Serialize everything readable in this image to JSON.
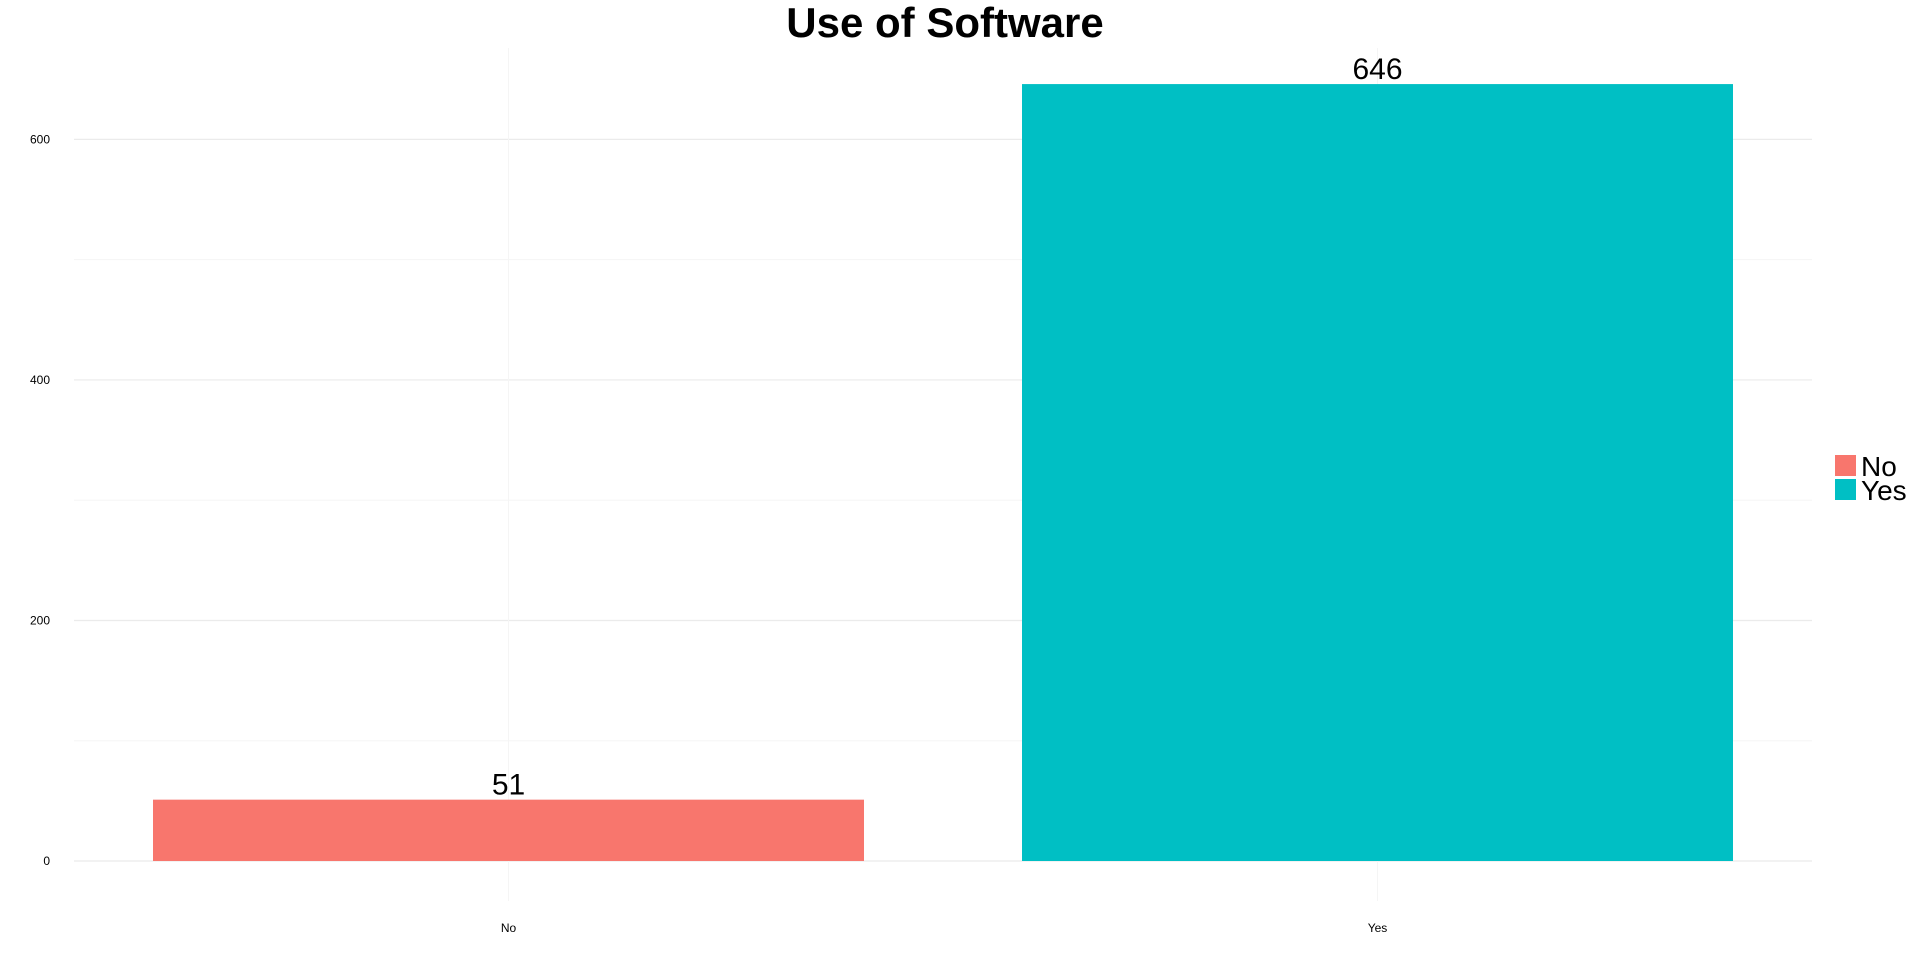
{
  "chart_data": {
    "type": "bar",
    "title": "Use of Software",
    "xlabel": "",
    "ylabel": "",
    "categories": [
      "No",
      "Yes"
    ],
    "values": [
      51,
      646
    ],
    "colors": [
      "#F8766D",
      "#00BFC4"
    ],
    "ylim": [
      0,
      676
    ],
    "yticks": [
      0,
      200,
      400,
      600
    ],
    "grid": true,
    "legend": {
      "placement": "right",
      "entries": [
        {
          "label": "No",
          "color": "#F8766D"
        },
        {
          "label": "Yes",
          "color": "#00BFC4"
        }
      ]
    }
  }
}
